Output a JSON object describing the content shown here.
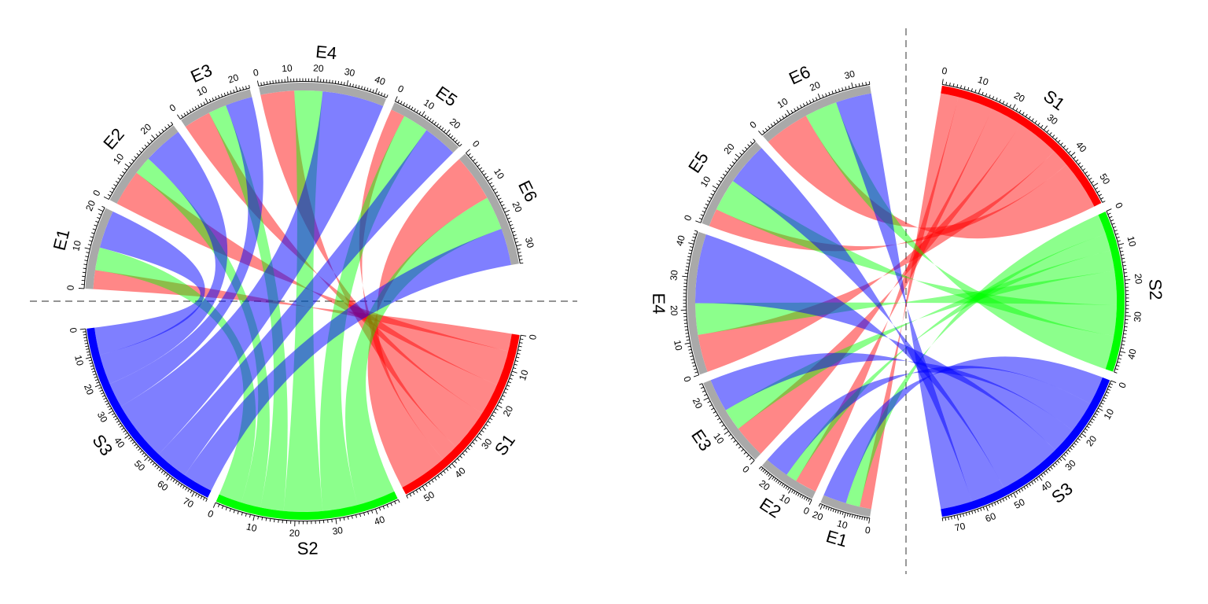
{
  "chart_data": [
    {
      "type": "chord",
      "title": "",
      "split": "horizontal",
      "sectors": [
        {
          "name": "E1",
          "total": 21,
          "color": "#a9a9a9"
        },
        {
          "name": "E2",
          "total": 26,
          "color": "#a9a9a9"
        },
        {
          "name": "E3",
          "total": 24,
          "color": "#a9a9a9"
        },
        {
          "name": "E4",
          "total": 44,
          "color": "#a9a9a9"
        },
        {
          "name": "E5",
          "total": 26,
          "color": "#a9a9a9"
        },
        {
          "name": "E6",
          "total": 35,
          "color": "#a9a9a9"
        },
        {
          "name": "S1",
          "total": 55,
          "color": "#ff0000"
        },
        {
          "name": "S2",
          "total": 46,
          "color": "#00ff00"
        },
        {
          "name": "S3",
          "total": 75,
          "color": "#0000ff"
        }
      ],
      "links": [
        {
          "from": "E1",
          "to": "S1",
          "value": 5
        },
        {
          "from": "E1",
          "to": "S2",
          "value": 6
        },
        {
          "from": "E1",
          "to": "S3",
          "value": 10
        },
        {
          "from": "E2",
          "to": "S1",
          "value": 10
        },
        {
          "from": "E2",
          "to": "S2",
          "value": 5
        },
        {
          "from": "E2",
          "to": "S3",
          "value": 11
        },
        {
          "from": "E3",
          "to": "S1",
          "value": 9
        },
        {
          "from": "E3",
          "to": "S2",
          "value": 6
        },
        {
          "from": "E3",
          "to": "S3",
          "value": 9
        },
        {
          "from": "E4",
          "to": "S1",
          "value": 12
        },
        {
          "from": "E4",
          "to": "S2",
          "value": 10
        },
        {
          "from": "E4",
          "to": "S3",
          "value": 22
        },
        {
          "from": "E5",
          "to": "S1",
          "value": 5
        },
        {
          "from": "E5",
          "to": "S2",
          "value": 9
        },
        {
          "from": "E5",
          "to": "S3",
          "value": 12
        },
        {
          "from": "E6",
          "to": "S1",
          "value": 14
        },
        {
          "from": "E6",
          "to": "S2",
          "value": 10
        },
        {
          "from": "E6",
          "to": "S3",
          "value": 11
        }
      ]
    },
    {
      "type": "chord",
      "title": "",
      "split": "vertical",
      "sectors": [
        {
          "name": "E1",
          "total": 21,
          "color": "#a9a9a9"
        },
        {
          "name": "E2",
          "total": 26,
          "color": "#a9a9a9"
        },
        {
          "name": "E3",
          "total": 24,
          "color": "#a9a9a9"
        },
        {
          "name": "E4",
          "total": 44,
          "color": "#a9a9a9"
        },
        {
          "name": "E5",
          "total": 26,
          "color": "#a9a9a9"
        },
        {
          "name": "E6",
          "total": 35,
          "color": "#a9a9a9"
        },
        {
          "name": "S1",
          "total": 55,
          "color": "#ff0000"
        },
        {
          "name": "S2",
          "total": 46,
          "color": "#00ff00"
        },
        {
          "name": "S3",
          "total": 75,
          "color": "#0000ff"
        }
      ],
      "links": [
        {
          "from": "E1",
          "to": "S1",
          "value": 5
        },
        {
          "from": "E1",
          "to": "S2",
          "value": 6
        },
        {
          "from": "E1",
          "to": "S3",
          "value": 10
        },
        {
          "from": "E2",
          "to": "S1",
          "value": 10
        },
        {
          "from": "E2",
          "to": "S2",
          "value": 5
        },
        {
          "from": "E2",
          "to": "S3",
          "value": 11
        },
        {
          "from": "E3",
          "to": "S1",
          "value": 9
        },
        {
          "from": "E3",
          "to": "S2",
          "value": 6
        },
        {
          "from": "E3",
          "to": "S3",
          "value": 9
        },
        {
          "from": "E4",
          "to": "S1",
          "value": 12
        },
        {
          "from": "E4",
          "to": "S2",
          "value": 10
        },
        {
          "from": "E4",
          "to": "S3",
          "value": 22
        },
        {
          "from": "E5",
          "to": "S1",
          "value": 5
        },
        {
          "from": "E5",
          "to": "S2",
          "value": 9
        },
        {
          "from": "E5",
          "to": "S3",
          "value": 12
        },
        {
          "from": "E6",
          "to": "S1",
          "value": 14
        },
        {
          "from": "E6",
          "to": "S2",
          "value": 10
        },
        {
          "from": "E6",
          "to": "S3",
          "value": 11
        }
      ]
    }
  ]
}
